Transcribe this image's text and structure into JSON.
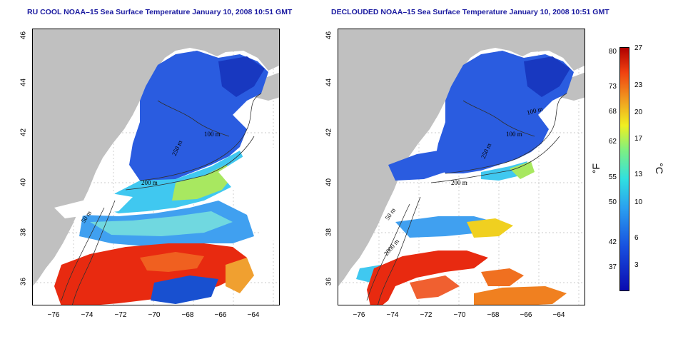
{
  "left_panel": {
    "title": "RU COOL NOAA–15 Sea Surface Temperature January 10, 2008 10:51 GMT",
    "contours": [
      "100 m",
      "250 m",
      "200 m",
      "50 m"
    ]
  },
  "right_panel": {
    "title": "DECLOUDED NOAA–15 Sea Surface Temperature January 10, 2008 10:51 GMT",
    "contours": [
      "100 m",
      "100 m",
      "250 m",
      "200 m",
      "50 m",
      "2000 m"
    ]
  },
  "axes": {
    "x_ticks": [
      "−76",
      "−74",
      "−72",
      "−70",
      "−68",
      "−66",
      "−64"
    ],
    "y_ticks": [
      "46",
      "44",
      "42",
      "40",
      "38",
      "36"
    ]
  },
  "colorbar": {
    "f_ticks": [
      "80",
      "73",
      "68",
      "62",
      "55",
      "50",
      "42",
      "37"
    ],
    "c_ticks": [
      "27",
      "23",
      "20",
      "17",
      "13",
      "10",
      "6",
      "3"
    ],
    "f_unit": "°F",
    "c_unit": "°C"
  },
  "colors": {
    "land": "#c0c0c0",
    "cold": "#2050d8",
    "warm": "#e82010",
    "title": "#1a1aa0"
  }
}
